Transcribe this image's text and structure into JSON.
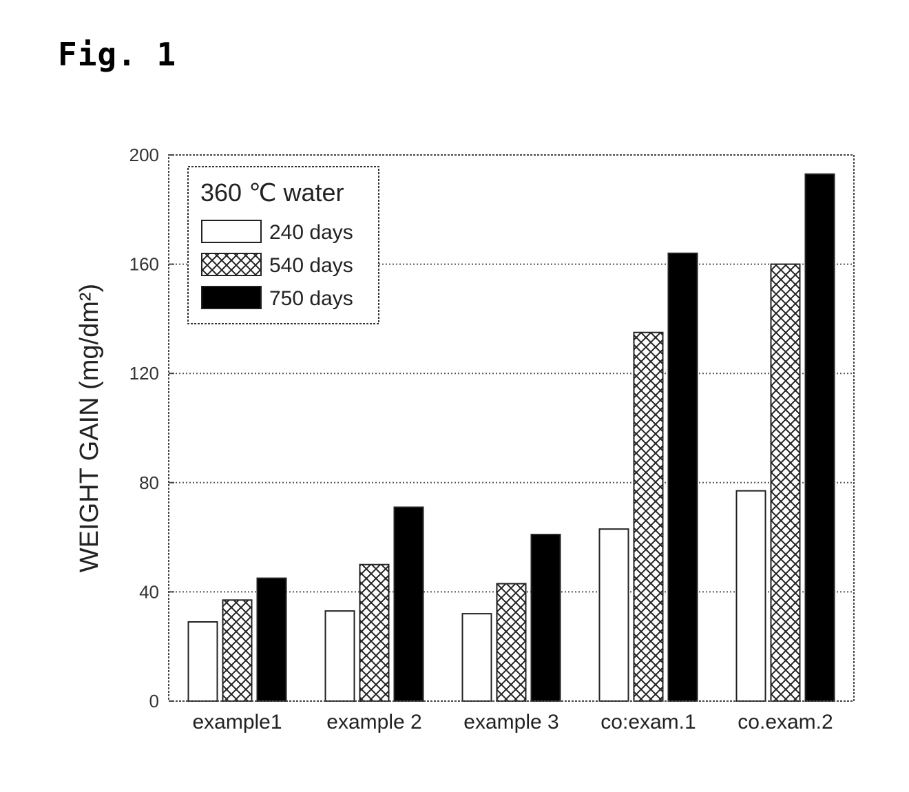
{
  "figure_label": "Fig. 1",
  "chart_data": {
    "type": "bar",
    "categories": [
      "example1",
      "example 2",
      "example 3",
      "co:exam.1",
      "co.exam.2"
    ],
    "series": [
      {
        "name": "240 days",
        "values": [
          29,
          33,
          32,
          63,
          77
        ],
        "fill": "#ffffff",
        "pattern": "none"
      },
      {
        "name": "540 days",
        "values": [
          37,
          50,
          43,
          135,
          160
        ],
        "fill": "#ffffff",
        "pattern": "crosshatch"
      },
      {
        "name": "750 days",
        "values": [
          45,
          71,
          61,
          164,
          193
        ],
        "fill": "#000000",
        "pattern": "solid"
      }
    ],
    "title": "",
    "xlabel": "",
    "ylabel": "WEIGHT GAIN (mg/dm²)",
    "ylim": [
      0,
      200
    ],
    "yticks": [
      "0",
      "40",
      "80",
      "120",
      "160",
      "200"
    ],
    "ytick_values": [
      0,
      40,
      80,
      120,
      160,
      200
    ],
    "grid": true,
    "grid_style": "dotted-horizontal",
    "legend_title": "360 ℃ water",
    "legend_position": "top-left"
  }
}
